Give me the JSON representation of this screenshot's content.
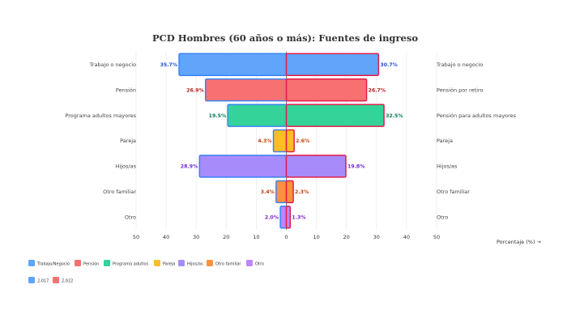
{
  "chart_data": {
    "type": "bar",
    "orientation": "horizontal-mirrored",
    "title": "PCD Hombres (60 años o más): Fuentes de ingreso",
    "xlabel": "Porcentaje (%) →",
    "xlim": [
      -50,
      50
    ],
    "xticks": [
      -50,
      -40,
      -30,
      -20,
      -10,
      0,
      10,
      20,
      30,
      40,
      50
    ],
    "xtick_labels": [
      "50",
      "40",
      "30",
      "20",
      "10",
      "0",
      "10",
      "20",
      "30",
      "40",
      "50"
    ],
    "grid": true,
    "left_categories": [
      "Trabajo o negocio",
      "Pensión",
      "Programa adultos mayores",
      "Pareja",
      "Hijos/as",
      "Otro familiar",
      "Otro"
    ],
    "right_categories": [
      "Trabajo o negocio",
      "Pensión por retiro",
      "Pensión para adultos mayores",
      "Pareja",
      "Hijos/as",
      "Otro familiar",
      "Otro"
    ],
    "series": [
      {
        "name": "2,017",
        "side": "left",
        "values": [
          35.7,
          26.9,
          19.5,
          4.3,
          28.9,
          3.4,
          2.0
        ],
        "labels": [
          "35.7%",
          "26.9%",
          "19.5%",
          "4.3%",
          "28.9%",
          "3.4%",
          "2.0%"
        ]
      },
      {
        "name": "2,022",
        "side": "right",
        "values": [
          30.7,
          26.7,
          32.5,
          2.6,
          19.8,
          2.3,
          1.3
        ],
        "labels": [
          "30.7%",
          "26.7%",
          "32.5%",
          "2.6%",
          "19.8%",
          "2.3%",
          "1.3%"
        ]
      }
    ],
    "category_colors": [
      "#60a5fa",
      "#f87171",
      "#34d399",
      "#fbbf24",
      "#a78bfa",
      "#fb923c",
      "#c084fc"
    ],
    "label_colors": [
      "#1d4ed8",
      "#b91c1c",
      "#047857",
      "#c2410c",
      "#6d28d9",
      "#c2410c",
      "#7e22ce"
    ],
    "series_outline_colors": [
      "#3b82f6",
      "#e11d48"
    ],
    "legend_categories": [
      "Trabajo/Negocio",
      "Pensión",
      "Programa adultos",
      "Pareja",
      "Hijos/as",
      "Otro familiar",
      "Otro"
    ],
    "legend_series": [
      "2,017",
      "2,022"
    ],
    "legend_series_colors": [
      "#60a5fa",
      "#f87171"
    ]
  }
}
